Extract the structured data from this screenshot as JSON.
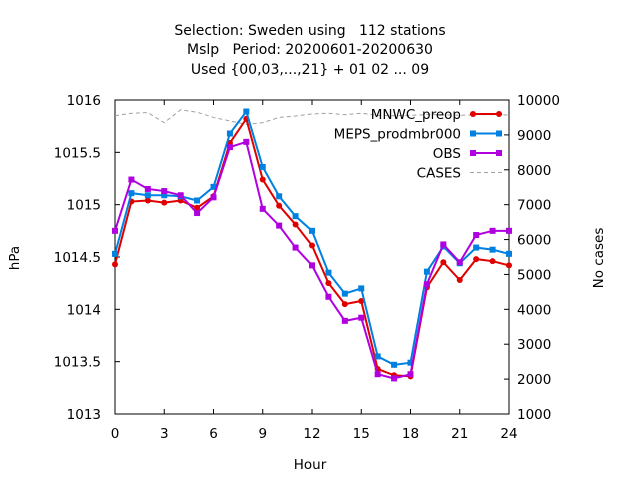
{
  "chart_data": {
    "type": "line",
    "title_lines": [
      "Selection: Sweden using   112 stations",
      "Mslp   Period: 20200601-20200630",
      "Used {00,03,...,21} + 01 02 ... 09"
    ],
    "xlabel": "Hour",
    "ylabel": "hPa",
    "y2label": "No cases",
    "xlim": [
      0,
      24
    ],
    "ylim": [
      1013,
      1016
    ],
    "y2lim": [
      1000,
      10000
    ],
    "x_ticks": [
      "0",
      "3",
      "6",
      "9",
      "12",
      "15",
      "18",
      "21",
      "24"
    ],
    "y_ticks": [
      "1013",
      "1013.5",
      "1014",
      "1014.5",
      "1015",
      "1015.5",
      "1016"
    ],
    "y2_ticks": [
      "1000",
      "2000",
      "3000",
      "4000",
      "5000",
      "6000",
      "7000",
      "8000",
      "9000",
      "10000"
    ],
    "grid": false,
    "legend_position": "top-right",
    "x": [
      0,
      1,
      2,
      3,
      4,
      5,
      6,
      7,
      8,
      9,
      10,
      11,
      12,
      13,
      14,
      15,
      16,
      17,
      18,
      19,
      20,
      21,
      22,
      23,
      24
    ],
    "series": [
      {
        "name": "MNWC_preop",
        "axis": "left",
        "color": "#e00000",
        "marker": "circle",
        "values": [
          1014.43,
          1015.03,
          1015.04,
          1015.02,
          1015.04,
          1014.97,
          1015.08,
          1015.59,
          1015.82,
          1015.24,
          1014.99,
          1014.81,
          1014.61,
          1014.25,
          1014.05,
          1014.08,
          1013.43,
          1013.37,
          1013.36,
          1014.21,
          1014.45,
          1014.28,
          1014.48,
          1014.46,
          1014.42
        ]
      },
      {
        "name": "MEPS_prodmbr000",
        "axis": "left",
        "color": "#0080e0",
        "marker": "square",
        "values": [
          1014.53,
          1015.11,
          1015.09,
          1015.09,
          1015.08,
          1015.04,
          1015.17,
          1015.68,
          1015.89,
          1015.36,
          1015.08,
          1014.89,
          1014.75,
          1014.35,
          1014.15,
          1014.2,
          1013.55,
          1013.47,
          1013.49,
          1014.36,
          1014.6,
          1014.44,
          1014.59,
          1014.57,
          1014.53
        ]
      },
      {
        "name": "OBS",
        "axis": "left",
        "color": "#b000e0",
        "marker": "square",
        "values": [
          1014.75,
          1015.24,
          1015.15,
          1015.13,
          1015.09,
          1014.92,
          1015.07,
          1015.55,
          1015.6,
          1014.96,
          1014.8,
          1014.59,
          1014.42,
          1014.12,
          1013.89,
          1013.92,
          1013.38,
          1013.34,
          1013.38,
          1014.24,
          1014.62,
          1014.45,
          1014.71,
          1014.75,
          1014.75
        ]
      },
      {
        "name": "CASES",
        "axis": "right",
        "color": "#a0a0a0",
        "dashed": true,
        "values": [
          9550,
          9620,
          9640,
          9350,
          9720,
          9650,
          9500,
          9400,
          9300,
          9350,
          9500,
          9540,
          9600,
          9620,
          9580,
          9620,
          9560,
          9550,
          9560,
          9580,
          9580,
          9560,
          9580,
          9580,
          9570
        ]
      }
    ]
  }
}
